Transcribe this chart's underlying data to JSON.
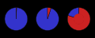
{
  "pies": [
    {
      "slices": [
        99.3,
        0.7
      ],
      "colors": [
        "#3333cc",
        "#cc2222"
      ],
      "startangle": 90,
      "donut": false,
      "donut_ratio": 0.0
    },
    {
      "slices": [
        95.0,
        5.0
      ],
      "colors": [
        "#3333cc",
        "#cc2222"
      ],
      "startangle": 90,
      "donut": false,
      "donut_ratio": 0.0
    },
    {
      "slices": [
        20.0,
        80.0
      ],
      "colors": [
        "#3333cc",
        "#cc2222"
      ],
      "startangle": 90,
      "donut": true,
      "donut_ratio": 0.42
    }
  ],
  "background": "#000000",
  "pie_edge_color": "#111111",
  "linewidth": 0.3,
  "blue": "#3333cc",
  "red": "#cc2222"
}
